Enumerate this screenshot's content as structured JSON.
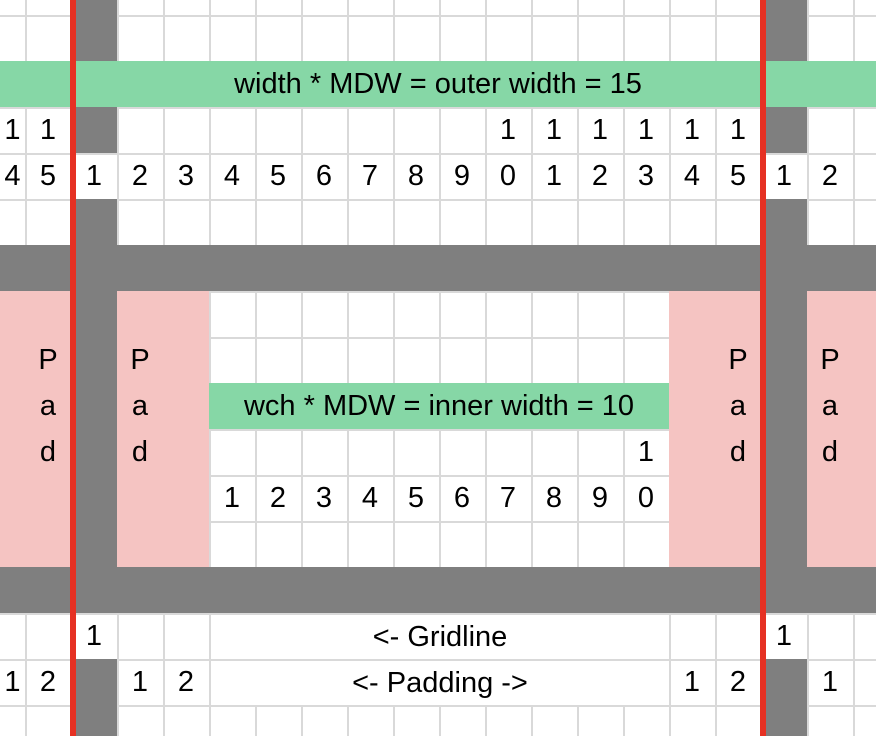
{
  "colors": {
    "green": "#86d7a6",
    "pink": "#f5c4c2",
    "gray": "#7f7f7f",
    "red": "#e63123",
    "grid": "#d9d9d9",
    "text": "#000000",
    "bg": "#ffffff"
  },
  "bands": {
    "outer": {
      "label": "width * MDW = outer width = 15",
      "value": 15
    },
    "inner": {
      "label": "wch * MDW = inner width = 10",
      "value": 10
    }
  },
  "labels": {
    "gridline": "<- Gridline",
    "padding": "<- Padding ->"
  },
  "pad_blocks": [
    {
      "name": "padding-block-outer-left",
      "letters": [
        "P",
        "a",
        "d"
      ]
    },
    {
      "name": "padding-block-inner-left",
      "letters": [
        "P",
        "a",
        "d"
      ]
    },
    {
      "name": "padding-block-inner-right",
      "letters": [
        "P",
        "a",
        "d"
      ]
    },
    {
      "name": "padding-block-outer-right",
      "letters": [
        "P",
        "a",
        "d"
      ]
    }
  ],
  "cells": [
    {
      "r": 3,
      "c": 0,
      "ch": "1",
      "group": "edge-left-tens"
    },
    {
      "r": 3,
      "c": 1,
      "ch": "1",
      "group": "edge-left-tens"
    },
    {
      "r": 3,
      "c": 11,
      "ch": "1",
      "group": "outer-tens"
    },
    {
      "r": 3,
      "c": 12,
      "ch": "1",
      "group": "outer-tens"
    },
    {
      "r": 3,
      "c": 13,
      "ch": "1",
      "group": "outer-tens"
    },
    {
      "r": 3,
      "c": 14,
      "ch": "1",
      "group": "outer-tens"
    },
    {
      "r": 3,
      "c": 15,
      "ch": "1",
      "group": "outer-tens"
    },
    {
      "r": 3,
      "c": 16,
      "ch": "1",
      "group": "outer-tens"
    },
    {
      "r": 4,
      "c": 0,
      "ch": "4",
      "group": "edge-left-count"
    },
    {
      "r": 4,
      "c": 1,
      "ch": "5",
      "group": "edge-left-count"
    },
    {
      "r": 4,
      "c": 2,
      "ch": "1",
      "group": "outer-count"
    },
    {
      "r": 4,
      "c": 3,
      "ch": "2",
      "group": "outer-count"
    },
    {
      "r": 4,
      "c": 4,
      "ch": "3",
      "group": "outer-count"
    },
    {
      "r": 4,
      "c": 5,
      "ch": "4",
      "group": "outer-count"
    },
    {
      "r": 4,
      "c": 6,
      "ch": "5",
      "group": "outer-count"
    },
    {
      "r": 4,
      "c": 7,
      "ch": "6",
      "group": "outer-count"
    },
    {
      "r": 4,
      "c": 8,
      "ch": "7",
      "group": "outer-count"
    },
    {
      "r": 4,
      "c": 9,
      "ch": "8",
      "group": "outer-count"
    },
    {
      "r": 4,
      "c": 10,
      "ch": "9",
      "group": "outer-count"
    },
    {
      "r": 4,
      "c": 11,
      "ch": "0",
      "group": "outer-count"
    },
    {
      "r": 4,
      "c": 12,
      "ch": "1",
      "group": "outer-count"
    },
    {
      "r": 4,
      "c": 13,
      "ch": "2",
      "group": "outer-count"
    },
    {
      "r": 4,
      "c": 14,
      "ch": "3",
      "group": "outer-count"
    },
    {
      "r": 4,
      "c": 15,
      "ch": "4",
      "group": "outer-count"
    },
    {
      "r": 4,
      "c": 16,
      "ch": "5",
      "group": "outer-count"
    },
    {
      "r": 4,
      "c": 17,
      "ch": "1",
      "group": "edge-right-count"
    },
    {
      "r": 4,
      "c": 18,
      "ch": "2",
      "group": "edge-right-count"
    },
    {
      "r": 8,
      "c": 1,
      "ch": "P",
      "group": "pad-letter"
    },
    {
      "r": 9,
      "c": 1,
      "ch": "a",
      "group": "pad-letter"
    },
    {
      "r": 10,
      "c": 1,
      "ch": "d",
      "group": "pad-letter"
    },
    {
      "r": 8,
      "c": 3,
      "ch": "P",
      "group": "pad-letter"
    },
    {
      "r": 9,
      "c": 3,
      "ch": "a",
      "group": "pad-letter"
    },
    {
      "r": 10,
      "c": 3,
      "ch": "d",
      "group": "pad-letter"
    },
    {
      "r": 8,
      "c": 16,
      "ch": "P",
      "group": "pad-letter"
    },
    {
      "r": 9,
      "c": 16,
      "ch": "a",
      "group": "pad-letter"
    },
    {
      "r": 10,
      "c": 16,
      "ch": "d",
      "group": "pad-letter"
    },
    {
      "r": 8,
      "c": 18,
      "ch": "P",
      "group": "pad-letter"
    },
    {
      "r": 9,
      "c": 18,
      "ch": "a",
      "group": "pad-letter"
    },
    {
      "r": 10,
      "c": 18,
      "ch": "d",
      "group": "pad-letter"
    },
    {
      "r": 10,
      "c": 14,
      "ch": "1",
      "group": "inner-tens"
    },
    {
      "r": 11,
      "c": 5,
      "ch": "1",
      "group": "inner-count"
    },
    {
      "r": 11,
      "c": 6,
      "ch": "2",
      "group": "inner-count"
    },
    {
      "r": 11,
      "c": 7,
      "ch": "3",
      "group": "inner-count"
    },
    {
      "r": 11,
      "c": 8,
      "ch": "4",
      "group": "inner-count"
    },
    {
      "r": 11,
      "c": 9,
      "ch": "5",
      "group": "inner-count"
    },
    {
      "r": 11,
      "c": 10,
      "ch": "6",
      "group": "inner-count"
    },
    {
      "r": 11,
      "c": 11,
      "ch": "7",
      "group": "inner-count"
    },
    {
      "r": 11,
      "c": 12,
      "ch": "8",
      "group": "inner-count"
    },
    {
      "r": 11,
      "c": 13,
      "ch": "9",
      "group": "inner-count"
    },
    {
      "r": 11,
      "c": 14,
      "ch": "0",
      "group": "inner-count"
    },
    {
      "r": 14,
      "c": 2,
      "ch": "1",
      "group": "gridline-count"
    },
    {
      "r": 14,
      "c": 17,
      "ch": "1",
      "group": "gridline-count"
    },
    {
      "r": 15,
      "c": 0,
      "ch": "1",
      "group": "padding-count"
    },
    {
      "r": 15,
      "c": 1,
      "ch": "2",
      "group": "padding-count"
    },
    {
      "r": 15,
      "c": 3,
      "ch": "1",
      "group": "padding-count"
    },
    {
      "r": 15,
      "c": 4,
      "ch": "2",
      "group": "padding-count"
    },
    {
      "r": 15,
      "c": 15,
      "ch": "1",
      "group": "padding-count"
    },
    {
      "r": 15,
      "c": 16,
      "ch": "2",
      "group": "padding-count"
    },
    {
      "r": 15,
      "c": 18,
      "ch": "1",
      "group": "padding-count"
    }
  ]
}
